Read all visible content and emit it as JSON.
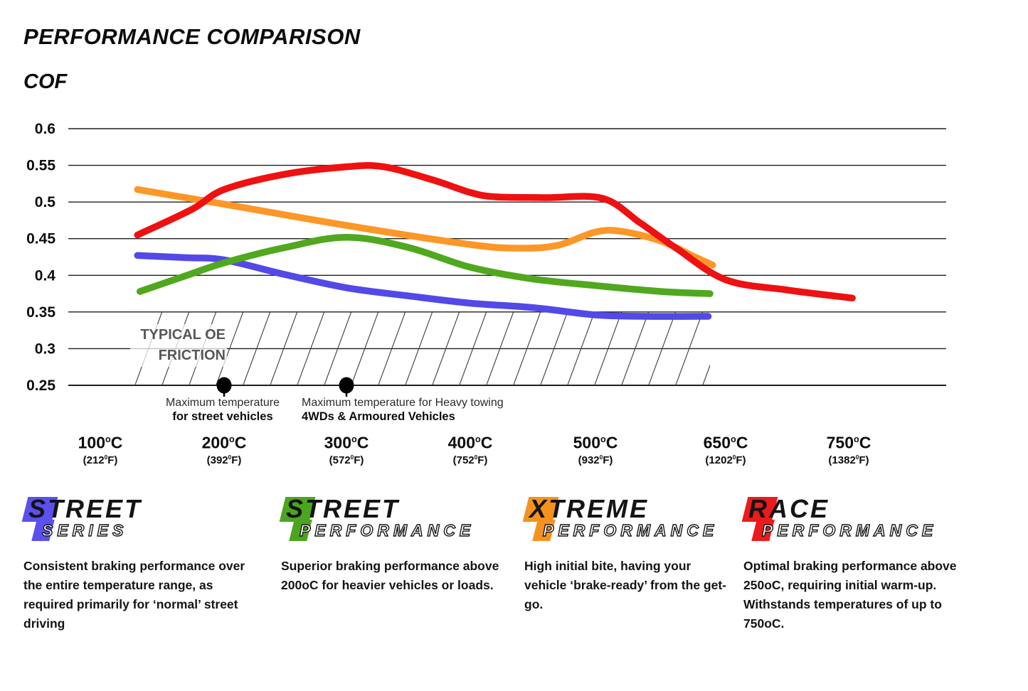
{
  "page": {
    "title": "PERFORMANCE COMPARISON",
    "y_axis_title": "COF"
  },
  "chart_data": {
    "type": "line",
    "title": "PERFORMANCE COMPARISON",
    "ylabel": "COF",
    "ylim": [
      0.25,
      0.6
    ],
    "grid": "horizontal",
    "y_tick_labels": [
      "0.6",
      "0.55",
      "0.5",
      "0.45",
      "0.4",
      "0.35",
      "0.3",
      "0.25"
    ],
    "degree_c_glyph": "o",
    "degree_f_glyph": "0",
    "x_ticks": [
      {
        "c": "100",
        "f": "212"
      },
      {
        "c": "200",
        "f": "392"
      },
      {
        "c": "300",
        "f": "572"
      },
      {
        "c": "400",
        "f": "752"
      },
      {
        "c": "500",
        "f": "932"
      },
      {
        "c": "650",
        "f": "1202"
      },
      {
        "c": "750",
        "f": "1382"
      }
    ],
    "series": [
      {
        "name": "Street Series",
        "color": "#5349E6",
        "points": [
          [
            130,
            0.427
          ],
          [
            170,
            0.424
          ],
          [
            200,
            0.421
          ],
          [
            250,
            0.401
          ],
          [
            300,
            0.383
          ],
          [
            350,
            0.372
          ],
          [
            400,
            0.362
          ],
          [
            450,
            0.356
          ],
          [
            500,
            0.346
          ],
          [
            560,
            0.344
          ],
          [
            630,
            0.344
          ]
        ]
      },
      {
        "name": "Street Performance",
        "color": "#50A81E",
        "points": [
          [
            132,
            0.378
          ],
          [
            170,
            0.4
          ],
          [
            200,
            0.417
          ],
          [
            250,
            0.438
          ],
          [
            300,
            0.452
          ],
          [
            350,
            0.438
          ],
          [
            400,
            0.411
          ],
          [
            450,
            0.395
          ],
          [
            500,
            0.386
          ],
          [
            575,
            0.378
          ],
          [
            632,
            0.375
          ]
        ]
      },
      {
        "name": "Xtreme Performance",
        "color": "#FD9727",
        "points": [
          [
            130,
            0.517
          ],
          [
            200,
            0.497
          ],
          [
            300,
            0.468
          ],
          [
            400,
            0.442
          ],
          [
            440,
            0.437
          ],
          [
            470,
            0.441
          ],
          [
            500,
            0.459
          ],
          [
            530,
            0.46
          ],
          [
            575,
            0.447
          ],
          [
            613,
            0.426
          ],
          [
            635,
            0.414
          ]
        ]
      },
      {
        "name": "Race Performance",
        "color": "#EE1111",
        "points": [
          [
            130,
            0.455
          ],
          [
            174,
            0.49
          ],
          [
            200,
            0.517
          ],
          [
            250,
            0.538
          ],
          [
            300,
            0.548
          ],
          [
            330,
            0.548
          ],
          [
            370,
            0.53
          ],
          [
            400,
            0.513
          ],
          [
            420,
            0.507
          ],
          [
            460,
            0.506
          ],
          [
            508,
            0.505
          ],
          [
            551,
            0.472
          ],
          [
            593,
            0.437
          ],
          [
            650,
            0.394
          ],
          [
            700,
            0.38
          ],
          [
            753,
            0.369
          ]
        ]
      }
    ],
    "oe_band": {
      "label_line1": "TYPICAL OE",
      "label_line2": "FRICTION",
      "cof_range": [
        0.25,
        0.35
      ],
      "temp_range": [
        128,
        632
      ]
    },
    "markers": [
      {
        "temp_c": 200,
        "cof": 0.25,
        "align": "center",
        "line1": "Maximum temperature",
        "line2": "for street vehicles"
      },
      {
        "temp_c": 300,
        "cof": 0.25,
        "align": "left",
        "line1": "Maximum temperature for Heavy towing",
        "line2": "4WDs & Armoured Vehicles"
      }
    ]
  },
  "legend": [
    {
      "name": "Street Series",
      "word1": "STREET",
      "word2": "SERIES",
      "color": "#5B50EE",
      "description": "Consistent braking performance over the entire temperature range, as required primarily for ‘normal’ street driving"
    },
    {
      "name": "Street Performance",
      "word1": "STREET",
      "word2": "PERFORMANCE",
      "color": "#4CA51F",
      "description": "Superior braking performance above 200oC for heavier vehicles or loads."
    },
    {
      "name": "Xtreme Performance",
      "word1": "XTREME",
      "word2": "PERFORMANCE",
      "color": "#F5921F",
      "description": "High initial bite, having your vehicle ‘brake-ready’ from the get-go."
    },
    {
      "name": "Race Performance",
      "word1": "RACE",
      "word2": "PERFORMANCE",
      "color": "#EC1B1B",
      "description": "Optimal braking performance above 250oC, requiring initial warm-up. Withstands temperatures of up to 750oC."
    }
  ]
}
